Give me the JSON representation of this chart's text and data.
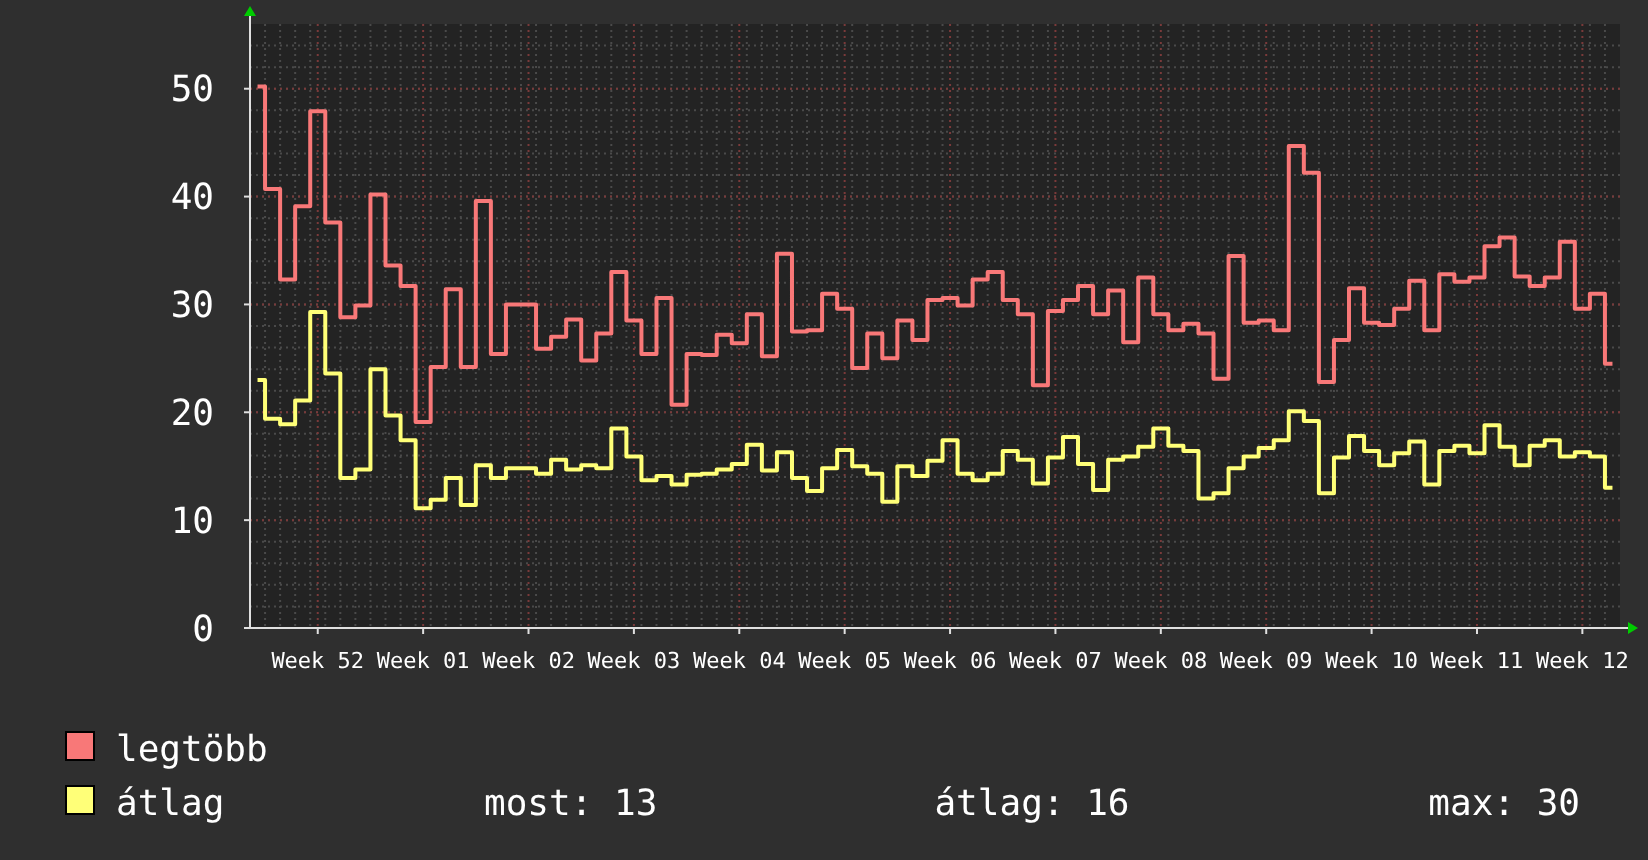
{
  "chart_data": {
    "type": "step",
    "categories": [
      null,
      null,
      null,
      null,
      "Week 52",
      null,
      null,
      null,
      null,
      null,
      null,
      "Week 01",
      null,
      null,
      null,
      null,
      null,
      null,
      "Week 02",
      null,
      null,
      null,
      null,
      null,
      null,
      "Week 03",
      null,
      null,
      null,
      null,
      null,
      null,
      "Week 04",
      null,
      null,
      null,
      null,
      null,
      null,
      "Week 05",
      null,
      null,
      null,
      null,
      null,
      null,
      "Week 06",
      null,
      null,
      null,
      null,
      null,
      null,
      "Week 07",
      null,
      null,
      null,
      null,
      null,
      null,
      "Week 08",
      null,
      null,
      null,
      null,
      null,
      null,
      "Week 09",
      null,
      null,
      null,
      null,
      null,
      null,
      "Week 10",
      null,
      null,
      null,
      null,
      null,
      null,
      "Week 11",
      null,
      null,
      null,
      null,
      null,
      null,
      "Week 12",
      null,
      null
    ],
    "series": [
      {
        "name": "legtöbb",
        "color": "#f87878",
        "values": [
          50.2,
          40.7,
          32.3,
          39.1,
          47.9,
          37.6,
          28.8,
          29.9,
          40.2,
          33.6,
          31.7,
          19.1,
          24.2,
          31.4,
          24.2,
          39.6,
          25.4,
          30,
          30,
          25.9,
          27,
          28.6,
          24.8,
          27.3,
          33,
          28.5,
          25.4,
          30.6,
          20.7,
          25.4,
          25.3,
          27.2,
          26.4,
          29.1,
          25.2,
          34.7,
          27.5,
          27.6,
          31,
          29.6,
          24.1,
          27.3,
          25,
          28.5,
          26.7,
          30.4,
          30.6,
          29.9,
          32.3,
          33,
          30.4,
          29.1,
          22.5,
          29.4,
          30.4,
          31.7,
          29.1,
          31.3,
          26.5,
          32.5,
          29.1,
          27.6,
          28.2,
          27.3,
          23.1,
          34.5,
          28.3,
          28.5,
          27.6,
          44.7,
          42.2,
          22.8,
          26.7,
          31.5,
          28.3,
          28.1,
          29.6,
          32.2,
          27.6,
          32.8,
          32.1,
          32.5,
          35.4,
          36.2,
          32.6,
          31.7,
          32.5,
          35.8,
          29.6,
          31,
          24.5
        ]
      },
      {
        "name": "átlag",
        "color": "#ffff78",
        "values": [
          23,
          19.4,
          18.9,
          21.1,
          29.3,
          23.6,
          13.9,
          14.7,
          24,
          19.7,
          17.4,
          11.1,
          11.9,
          13.9,
          11.4,
          15.1,
          13.9,
          14.8,
          14.8,
          14.3,
          15.6,
          14.7,
          15.1,
          14.8,
          18.5,
          15.9,
          13.7,
          14.1,
          13.3,
          14.2,
          14.3,
          14.7,
          15.2,
          17,
          14.6,
          16.3,
          13.9,
          12.7,
          14.8,
          16.5,
          15,
          14.3,
          11.7,
          15,
          14.1,
          15.5,
          17.4,
          14.3,
          13.7,
          14.3,
          16.4,
          15.6,
          13.4,
          15.8,
          17.7,
          15.2,
          12.8,
          15.6,
          15.9,
          16.8,
          18.5,
          16.9,
          16.4,
          12,
          12.5,
          14.8,
          15.9,
          16.7,
          17.4,
          20.1,
          19.2,
          12.5,
          15.8,
          17.8,
          16.4,
          15.1,
          16.2,
          17.3,
          13.3,
          16.4,
          16.9,
          16.2,
          18.8,
          16.8,
          15.1,
          16.9,
          17.4,
          15.9,
          16.3,
          15.9,
          13
        ]
      }
    ],
    "ylim": [
      0,
      56
    ],
    "yticks": [
      0,
      10,
      20,
      30,
      40,
      50
    ],
    "grid": true,
    "legend": "bottom left",
    "annotations": [
      "most: 13",
      "átlag: 16",
      "max: 30"
    ]
  }
}
